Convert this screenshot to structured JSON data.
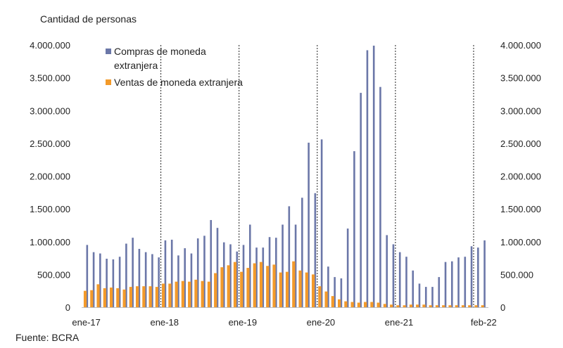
{
  "chart_data": {
    "type": "bar",
    "ylabel": "Cantidad de personas",
    "ylim": [
      0,
      4000000
    ],
    "y_ticks": [
      "0",
      "500.000",
      "1.000.000",
      "1.500.000",
      "2.000.000",
      "2.500.000",
      "3.000.000",
      "3.500.000",
      "4.000.000"
    ],
    "y_tick_values": [
      0,
      500000,
      1000000,
      1500000,
      2000000,
      2500000,
      3000000,
      3500000,
      4000000
    ],
    "x_tick_labels": [
      {
        "label": "ene-17",
        "index": 0
      },
      {
        "label": "ene-18",
        "index": 12
      },
      {
        "label": "ene-19",
        "index": 24
      },
      {
        "label": "ene-20",
        "index": 36
      },
      {
        "label": "ene-21",
        "index": 48
      },
      {
        "label": "feb-22",
        "index": 61
      }
    ],
    "vertical_lines_at_index": [
      12,
      24,
      36,
      48,
      60
    ],
    "legend": {
      "placement": "top-left"
    },
    "series": [
      {
        "name": "Compras de moneda extranjera",
        "color": "#6b77a8",
        "values": [
          950000,
          840000,
          820000,
          740000,
          730000,
          770000,
          970000,
          1060000,
          890000,
          840000,
          810000,
          760000,
          1020000,
          1030000,
          790000,
          900000,
          820000,
          1050000,
          1090000,
          1330000,
          1210000,
          990000,
          960000,
          850000,
          950000,
          1260000,
          910000,
          910000,
          1070000,
          1060000,
          1260000,
          1540000,
          1260000,
          1670000,
          2510000,
          1740000,
          2560000,
          620000,
          460000,
          440000,
          1200000,
          2380000,
          3270000,
          3920000,
          3990000,
          3360000,
          1100000,
          960000,
          840000,
          770000,
          560000,
          360000,
          310000,
          310000,
          460000,
          690000,
          700000,
          760000,
          770000,
          930000,
          910000,
          1020000
        ]
      },
      {
        "name": "Ventas de moneda extranjera",
        "color": "#f39a2a",
        "values": [
          250000,
          260000,
          350000,
          290000,
          300000,
          290000,
          270000,
          310000,
          320000,
          320000,
          320000,
          310000,
          360000,
          360000,
          390000,
          400000,
          390000,
          420000,
          400000,
          390000,
          520000,
          610000,
          640000,
          690000,
          540000,
          600000,
          670000,
          690000,
          630000,
          650000,
          530000,
          540000,
          700000,
          560000,
          530000,
          500000,
          320000,
          240000,
          170000,
          120000,
          90000,
          80000,
          70000,
          80000,
          80000,
          70000,
          50000,
          40000,
          30000,
          30000,
          40000,
          40000,
          40000,
          30000,
          30000,
          30000,
          30000,
          30000,
          30000,
          30000,
          30000,
          30000
        ]
      }
    ],
    "source_note": "Fuente: BCRA"
  }
}
